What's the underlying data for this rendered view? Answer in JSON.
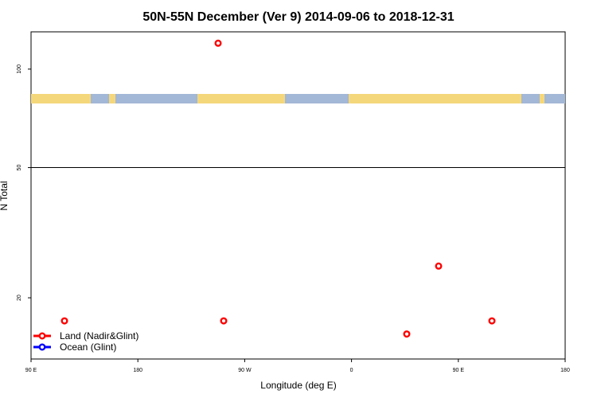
{
  "chart_data": {
    "type": "scatter",
    "title": "50N-55N December (Ver 9)   2014-09-06 to 2018-12-31",
    "xlabel": "Longitude (deg E)",
    "ylabel": "N Total",
    "x_ticks": [
      "90 E",
      "180",
      "90 W",
      "0",
      "90 E",
      "180"
    ],
    "y_ticks": [
      {
        "label": "20",
        "value": 20
      },
      {
        "label": "50",
        "value": 50
      },
      {
        "label": "100",
        "value": 100
      }
    ],
    "ylim": [
      13,
      130
    ],
    "y_scale": "log",
    "xlim_labels": [
      "90 E",
      "180"
    ],
    "reference_line": 50,
    "series": [
      {
        "name": "Land (Nadir&Glint)",
        "color": "#ff0000",
        "points": [
          {
            "x": "~122 E",
            "y": 17
          },
          {
            "x": "~100 W",
            "y": 120
          },
          {
            "x": "~95 W",
            "y": 17
          },
          {
            "x": "~50 E",
            "y": 15.5
          },
          {
            "x": "~80 E",
            "y": 25
          },
          {
            "x": "~130 E",
            "y": 17
          }
        ]
      },
      {
        "name": "Ocean (Glint)",
        "color": "#0000ff",
        "points": []
      }
    ],
    "legend_position": "bottom-left",
    "map_strip": {
      "land_color": "#f5d77b",
      "ocean_color": "#a3b7d6"
    }
  }
}
